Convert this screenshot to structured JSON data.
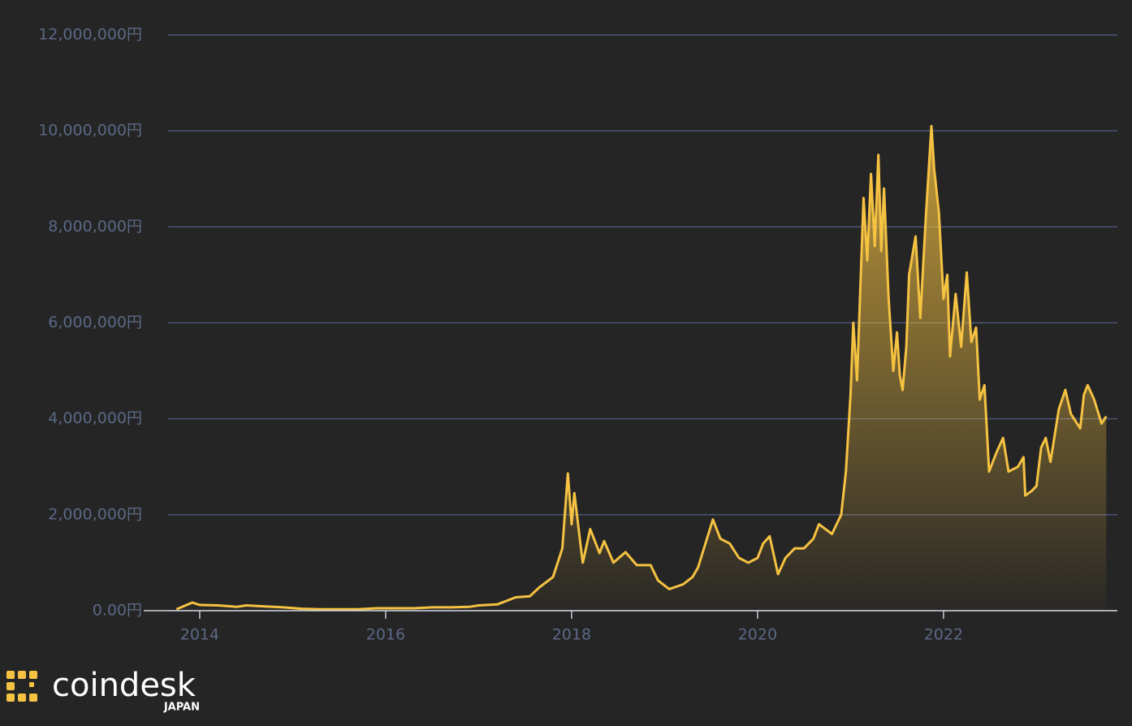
{
  "chart_data": {
    "type": "line",
    "color": "#f5c242",
    "grid": true,
    "xlim": [
      2013.66,
      2023.87
    ],
    "xticks": [
      2014,
      2016,
      2018,
      2020,
      2022
    ],
    "ylim": [
      0,
      12000000
    ],
    "yticks": [
      {
        "value": 0,
        "label": "0.00円"
      },
      {
        "value": 2000000,
        "label": "2,000,000円"
      },
      {
        "value": 4000000,
        "label": "4,000,000円"
      },
      {
        "value": 6000000,
        "label": "6,000,000円"
      },
      {
        "value": 8000000,
        "label": "8,000,000円"
      },
      {
        "value": 10000000,
        "label": "10,000,000円"
      },
      {
        "value": 12000000,
        "label": "12,000,000円"
      }
    ],
    "x": [
      2013.75,
      2013.92,
      2014.0,
      2014.2,
      2014.4,
      2014.5,
      2014.7,
      2014.9,
      2015.1,
      2015.3,
      2015.5,
      2015.7,
      2015.9,
      2016.1,
      2016.3,
      2016.5,
      2016.7,
      2016.9,
      2017.0,
      2017.2,
      2017.4,
      2017.55,
      2017.65,
      2017.8,
      2017.9,
      2017.96,
      2018.0,
      2018.03,
      2018.1,
      2018.12,
      2018.2,
      2018.3,
      2018.35,
      2018.45,
      2018.58,
      2018.7,
      2018.85,
      2018.93,
      2019.05,
      2019.2,
      2019.3,
      2019.36,
      2019.52,
      2019.6,
      2019.7,
      2019.8,
      2019.9,
      2020.0,
      2020.06,
      2020.13,
      2020.22,
      2020.3,
      2020.4,
      2020.5,
      2020.6,
      2020.66,
      2020.8,
      2020.9,
      2020.95,
      2021.0,
      2021.03,
      2021.07,
      2021.14,
      2021.18,
      2021.22,
      2021.26,
      2021.3,
      2021.33,
      2021.36,
      2021.41,
      2021.46,
      2021.5,
      2021.53,
      2021.56,
      2021.6,
      2021.63,
      2021.7,
      2021.75,
      2021.81,
      2021.87,
      2021.9,
      2021.95,
      2022.0,
      2022.04,
      2022.07,
      2022.13,
      2022.19,
      2022.25,
      2022.3,
      2022.35,
      2022.39,
      2022.44,
      2022.49,
      2022.57,
      2022.64,
      2022.7,
      2022.8,
      2022.86,
      2022.88,
      2022.95,
      2023.0,
      2023.05,
      2023.1,
      2023.15,
      2023.24,
      2023.31,
      2023.37,
      2023.47,
      2023.51,
      2023.55,
      2023.62,
      2023.7,
      2023.75
    ],
    "values": [
      30000,
      170000,
      120000,
      110000,
      80000,
      110000,
      90000,
      70000,
      40000,
      30000,
      30000,
      30000,
      50000,
      50000,
      50000,
      70000,
      70000,
      80000,
      110000,
      130000,
      280000,
      300000,
      480000,
      700000,
      1300000,
      2860000,
      1800000,
      2450000,
      1300000,
      1000000,
      1700000,
      1200000,
      1450000,
      1000000,
      1220000,
      950000,
      950000,
      630000,
      450000,
      550000,
      700000,
      900000,
      1900000,
      1500000,
      1400000,
      1100000,
      1000000,
      1100000,
      1400000,
      1550000,
      760000,
      1100000,
      1300000,
      1300000,
      1500000,
      1800000,
      1600000,
      2000000,
      2900000,
      4500000,
      6000000,
      4800000,
      8600000,
      7300000,
      9100000,
      7600000,
      9500000,
      7500000,
      8800000,
      6500000,
      5000000,
      5800000,
      4900000,
      4600000,
      5500000,
      7000000,
      7800000,
      6100000,
      8200000,
      10100000,
      9200000,
      8300000,
      6500000,
      7000000,
      5300000,
      6600000,
      5500000,
      7050000,
      5600000,
      5900000,
      4400000,
      4700000,
      2900000,
      3300000,
      3600000,
      2900000,
      3000000,
      3200000,
      2400000,
      2500000,
      2600000,
      3400000,
      3600000,
      3100000,
      4200000,
      4600000,
      4100000,
      3800000,
      4500000,
      4700000,
      4400000,
      3900000,
      4050000
    ]
  },
  "brand": {
    "name": "coindesk",
    "sub": "JAPAN"
  }
}
